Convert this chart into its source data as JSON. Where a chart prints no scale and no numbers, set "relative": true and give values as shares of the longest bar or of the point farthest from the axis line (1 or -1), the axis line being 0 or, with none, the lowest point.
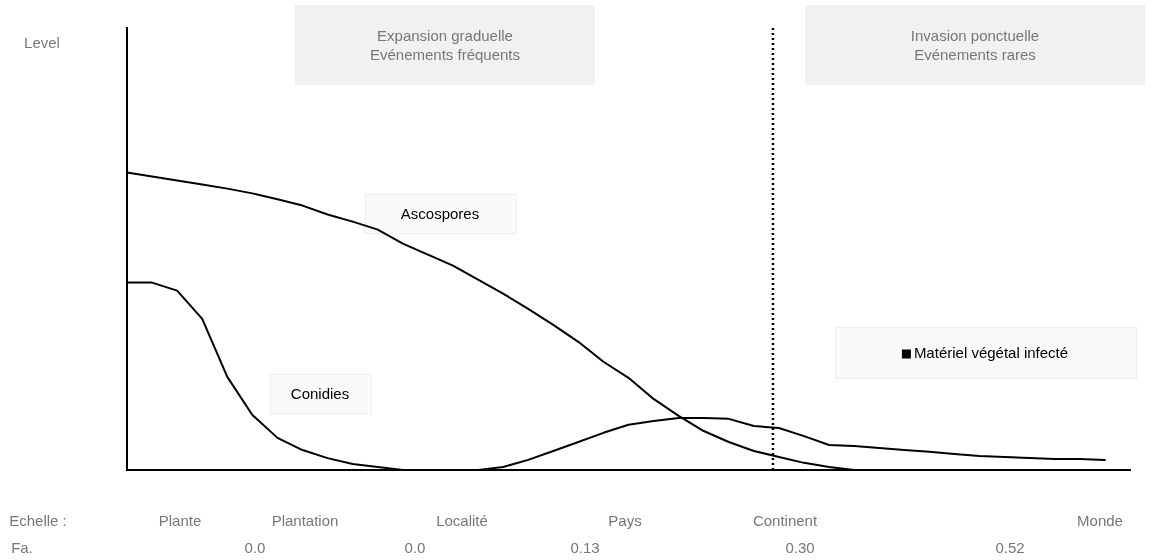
{
  "chart_data": {
    "type": "line",
    "relative": true,
    "marker": "none",
    "line_style": "solid",
    "categories": [
      null,
      null,
      null,
      null,
      null,
      null,
      null,
      null,
      null,
      null,
      null,
      null,
      null,
      null,
      null,
      null,
      null,
      null,
      null,
      null,
      null,
      null,
      null,
      null,
      null,
      null,
      null,
      null,
      null,
      null,
      null,
      null,
      null,
      null,
      null,
      null,
      null,
      null,
      null,
      null,
      null
    ],
    "series": [
      {
        "name": "Ascospores",
        "color": "#000000",
        "values": [
          1.0,
          0.987,
          0.973,
          0.96,
          0.946,
          0.93,
          0.91,
          0.889,
          0.859,
          0.835,
          0.808,
          0.761,
          0.724,
          0.687,
          0.64,
          0.593,
          0.542,
          0.488,
          0.431,
          0.364,
          0.31,
          0.239,
          0.182,
          0.131,
          0.094,
          0.064,
          0.044,
          0.024,
          0.01,
          0,
          null,
          null,
          null,
          null,
          null,
          null,
          null,
          null,
          null,
          null,
          null
        ]
      },
      {
        "name": "Conidies",
        "color": "#000000",
        "values": [
          0.63,
          0.63,
          0.603,
          0.508,
          0.313,
          0.185,
          0.108,
          0.067,
          0.04,
          0.02,
          0.01,
          0,
          null,
          null,
          null,
          null,
          null,
          null,
          null,
          null,
          null,
          null,
          null,
          null,
          null,
          null,
          null,
          null,
          null,
          null,
          null,
          null,
          null,
          null,
          null,
          null,
          null,
          null,
          null,
          null,
          null
        ]
      },
      {
        "name": "Matériel végétal infecté",
        "color": "#000000",
        "values": [
          null,
          null,
          null,
          null,
          null,
          null,
          null,
          null,
          null,
          null,
          null,
          null,
          null,
          null,
          0,
          0.01,
          0.034,
          0.064,
          0.094,
          0.125,
          0.152,
          0.165,
          0.175,
          0.175,
          0.172,
          0.148,
          0.141,
          0.114,
          0.084,
          0.081,
          0.074,
          0.067,
          0.061,
          0.054,
          0.047,
          0.044,
          0.04,
          0.037,
          0.037,
          0.034,
          null
        ]
      }
    ],
    "annotations": [
      "Expansion graduelle\nEvénements fréquents",
      "Invasion ponctuelle\nEvénements rares",
      "Echelle :",
      "Plante",
      "Plantation",
      "Localité",
      "Pays",
      "Continent",
      "Monde",
      "Fa.",
      "0.0",
      "0.0",
      "0.13",
      "0.30",
      "0.52",
      "Level"
    ]
  }
}
